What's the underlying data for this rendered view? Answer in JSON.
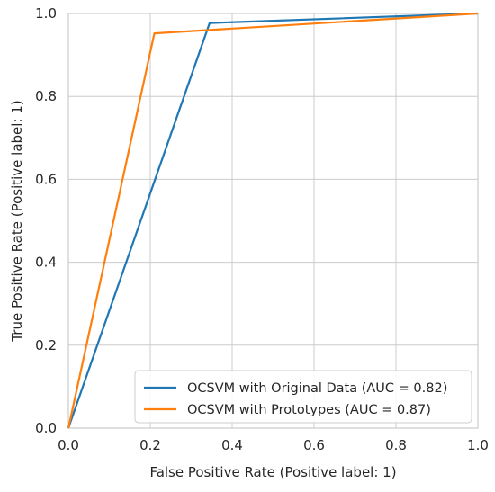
{
  "chart_data": {
    "type": "line",
    "title": "",
    "xlabel": "False Positive Rate (Positive label: 1)",
    "ylabel": "True Positive Rate (Positive label: 1)",
    "xlim": [
      0.0,
      1.0
    ],
    "ylim": [
      0.0,
      1.0
    ],
    "xticks": [
      "0.0",
      "0.2",
      "0.4",
      "0.6",
      "0.8",
      "1.0"
    ],
    "yticks": [
      "0.0",
      "0.2",
      "0.4",
      "0.6",
      "0.8",
      "1.0"
    ],
    "grid": true,
    "legend_position": "lower-right",
    "series": [
      {
        "name": "OCSVM with Original Data (AUC = 0.82)",
        "color": "#1f77b4",
        "x": [
          0.0,
          0.345,
          1.0
        ],
        "y": [
          0.0,
          0.977,
          1.0
        ]
      },
      {
        "name": "OCSVM with Prototypes (AUC = 0.87)",
        "color": "#ff7f0e",
        "x": [
          0.0,
          0.21,
          1.0
        ],
        "y": [
          0.0,
          0.952,
          1.0
        ]
      }
    ]
  }
}
